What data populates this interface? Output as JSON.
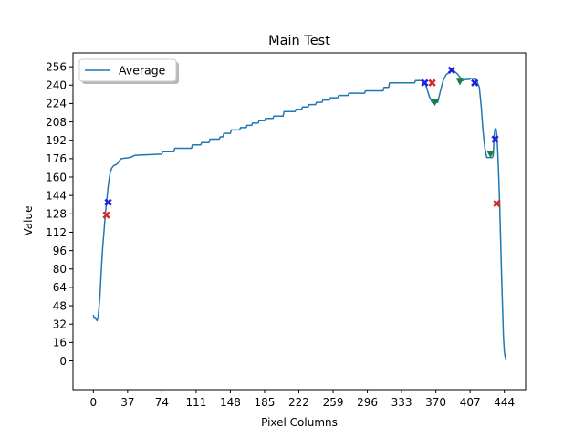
{
  "chart_data": {
    "type": "line",
    "title": "Main Test",
    "xlabel": "Pixel Columns",
    "ylabel": "Value",
    "xlim": [
      -22,
      467
    ],
    "ylim": [
      -25,
      268
    ],
    "xticks": [
      0,
      37,
      74,
      111,
      148,
      185,
      222,
      259,
      296,
      333,
      370,
      407,
      444
    ],
    "yticks": [
      0,
      16,
      32,
      48,
      64,
      80,
      96,
      112,
      128,
      144,
      160,
      176,
      192,
      208,
      224,
      240,
      256
    ],
    "legend": {
      "position": "top-left",
      "entries": [
        "Average"
      ]
    },
    "series": [
      {
        "name": "Average",
        "color": "#1f77b4",
        "points": [
          [
            0,
            40
          ],
          [
            1,
            37
          ],
          [
            2,
            38
          ],
          [
            3,
            36
          ],
          [
            4,
            35
          ],
          [
            5,
            38
          ],
          [
            6,
            46
          ],
          [
            7,
            55
          ],
          [
            8,
            70
          ],
          [
            9,
            85
          ],
          [
            10,
            98
          ],
          [
            11,
            108
          ],
          [
            12,
            118
          ],
          [
            13,
            128
          ],
          [
            14,
            136
          ],
          [
            15,
            144
          ],
          [
            16,
            152
          ],
          [
            17,
            158
          ],
          [
            18,
            163
          ],
          [
            19,
            166
          ],
          [
            20,
            168
          ],
          [
            22,
            170
          ],
          [
            25,
            171
          ],
          [
            28,
            174
          ],
          [
            30,
            176
          ],
          [
            40,
            177
          ],
          [
            45,
            179
          ],
          [
            74,
            180
          ],
          [
            75,
            182
          ],
          [
            87,
            182
          ],
          [
            88,
            185
          ],
          [
            106,
            185
          ],
          [
            107,
            188
          ],
          [
            116,
            188
          ],
          [
            117,
            190
          ],
          [
            125,
            190
          ],
          [
            126,
            193
          ],
          [
            136,
            193
          ],
          [
            137,
            195
          ],
          [
            140,
            195
          ],
          [
            141,
            198
          ],
          [
            148,
            198
          ],
          [
            149,
            201
          ],
          [
            158,
            201
          ],
          [
            159,
            203
          ],
          [
            165,
            203
          ],
          [
            166,
            205
          ],
          [
            171,
            205
          ],
          [
            172,
            207
          ],
          [
            178,
            207
          ],
          [
            179,
            209
          ],
          [
            185,
            209
          ],
          [
            186,
            211
          ],
          [
            194,
            211
          ],
          [
            195,
            213
          ],
          [
            205,
            213
          ],
          [
            206,
            217
          ],
          [
            218,
            217
          ],
          [
            219,
            219
          ],
          [
            225,
            219
          ],
          [
            226,
            221
          ],
          [
            232,
            221
          ],
          [
            233,
            223
          ],
          [
            240,
            223
          ],
          [
            241,
            225
          ],
          [
            247,
            225
          ],
          [
            248,
            227
          ],
          [
            255,
            227
          ],
          [
            256,
            229
          ],
          [
            264,
            229
          ],
          [
            265,
            231
          ],
          [
            275,
            231
          ],
          [
            276,
            233
          ],
          [
            293,
            233
          ],
          [
            294,
            235
          ],
          [
            313,
            235
          ],
          [
            314,
            238
          ],
          [
            319,
            238
          ],
          [
            320,
            242
          ],
          [
            347,
            242
          ],
          [
            348,
            244
          ],
          [
            357,
            244
          ],
          [
            360,
            238
          ],
          [
            363,
            230
          ],
          [
            366,
            225
          ],
          [
            372,
            225
          ],
          [
            375,
            235
          ],
          [
            378,
            244
          ],
          [
            381,
            249
          ],
          [
            384,
            251
          ],
          [
            387,
            253
          ],
          [
            390,
            252
          ],
          [
            393,
            250
          ],
          [
            396,
            247
          ],
          [
            399,
            244
          ],
          [
            403,
            245
          ],
          [
            406,
            245
          ],
          [
            408,
            246
          ],
          [
            412,
            246
          ],
          [
            414,
            244
          ],
          [
            417,
            238
          ],
          [
            419,
            222
          ],
          [
            421,
            200
          ],
          [
            423,
            185
          ],
          [
            425,
            177
          ],
          [
            431,
            177
          ],
          [
            432,
            179
          ],
          [
            433,
            196
          ],
          [
            434,
            202
          ],
          [
            435,
            202
          ],
          [
            436,
            196
          ],
          [
            437,
            180
          ],
          [
            438,
            160
          ],
          [
            439,
            135
          ],
          [
            440,
            105
          ],
          [
            441,
            75
          ],
          [
            442,
            48
          ],
          [
            443,
            22
          ],
          [
            444,
            8
          ],
          [
            445,
            3
          ],
          [
            446,
            1
          ]
        ]
      }
    ],
    "markers": {
      "red_x": [
        [
          14,
          127
        ],
        [
          366,
          242
        ],
        [
          436,
          137
        ]
      ],
      "blue_x": [
        [
          16,
          138
        ],
        [
          358,
          242
        ],
        [
          387,
          253
        ],
        [
          412,
          242
        ],
        [
          434,
          193
        ]
      ],
      "green_triangle": [
        [
          369,
          225
        ],
        [
          396,
          243
        ],
        [
          429,
          180
        ]
      ]
    },
    "colors": {
      "line": "#1f77b4",
      "red_marker": "#d62728",
      "blue_marker": "#1f22e0",
      "green_marker": "#1a7f3c"
    }
  }
}
